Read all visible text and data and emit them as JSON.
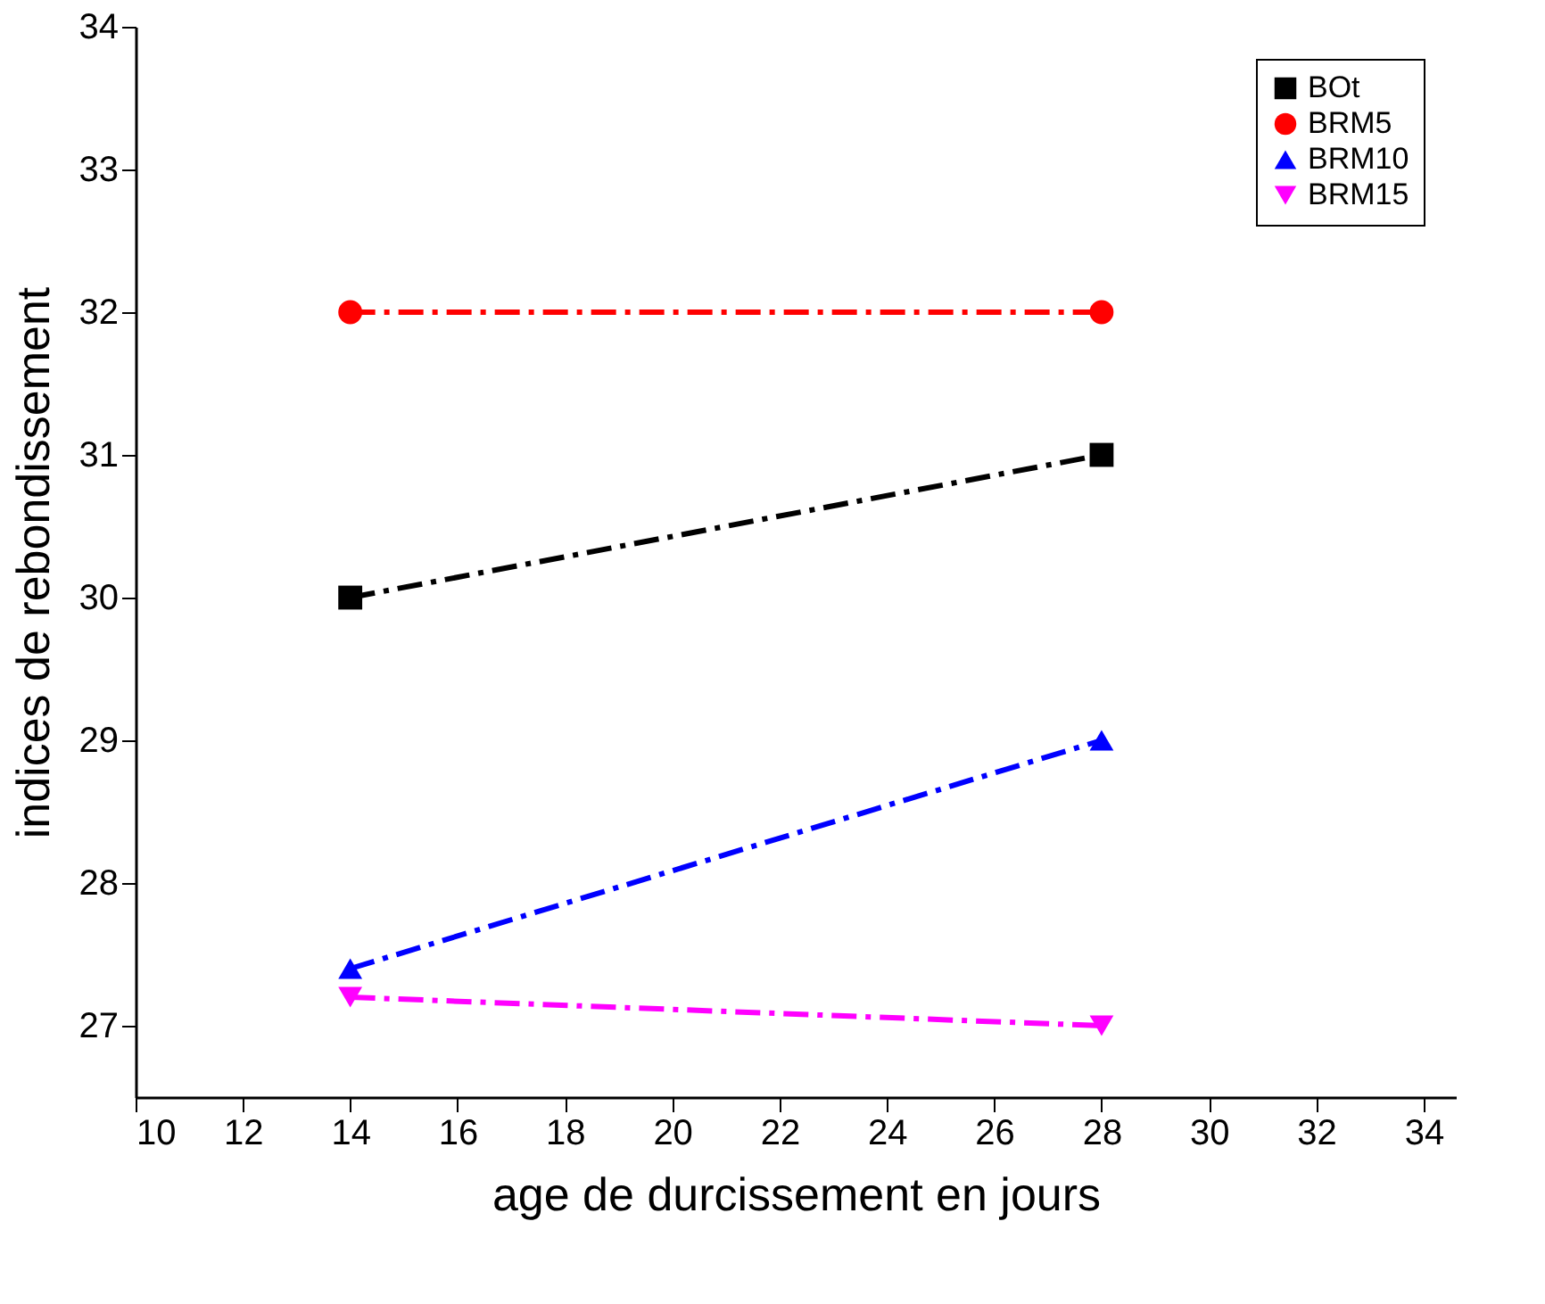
{
  "chart_data": {
    "type": "line",
    "xlabel": "age de durcissement en jours",
    "ylabel": "indices de rebondissement",
    "x": [
      14,
      28
    ],
    "series": [
      {
        "name": "BOt",
        "color": "#000000",
        "values": [
          30,
          31
        ],
        "marker": "square"
      },
      {
        "name": "BRM5",
        "color": "#ff0000",
        "values": [
          32,
          32
        ],
        "marker": "circle"
      },
      {
        "name": "BRM10",
        "color": "#0000ff",
        "values": [
          27.4,
          29
        ],
        "marker": "triangle"
      },
      {
        "name": "BRM15",
        "color": "#ff00ff",
        "values": [
          27.2,
          27
        ],
        "marker": "triangle-down"
      }
    ],
    "xlim": [
      10,
      34.6
    ],
    "xticks": [
      10,
      12,
      14,
      16,
      18,
      20,
      22,
      24,
      26,
      28,
      30,
      32,
      34
    ],
    "ylim": [
      26.5,
      34
    ],
    "yticks": [
      27,
      28,
      29,
      30,
      31,
      32,
      33,
      34
    ],
    "line_style": "dashed",
    "grid": false,
    "legend": "top right"
  }
}
